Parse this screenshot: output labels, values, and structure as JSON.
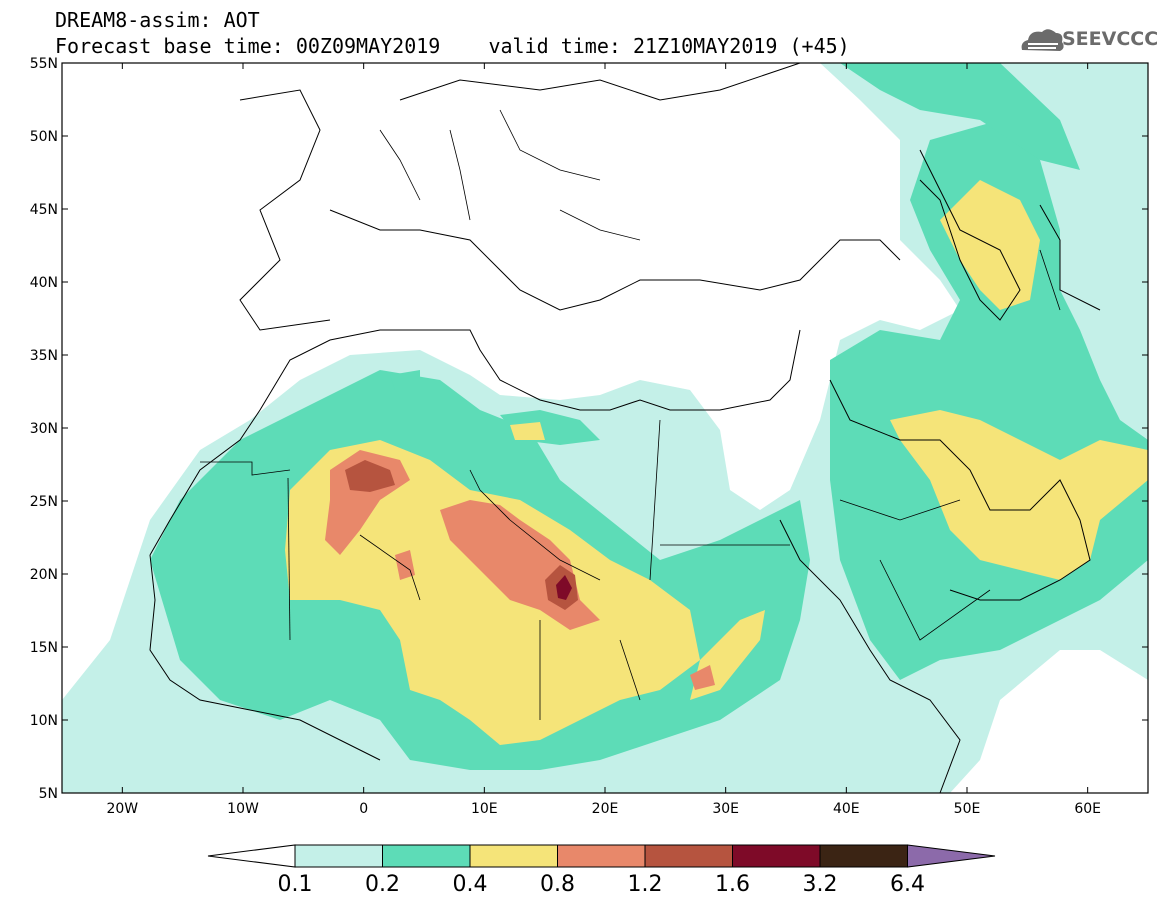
{
  "header": {
    "title_line_1": "DREAM8-assim: AOT",
    "title_line_2": "Forecast base time: 00Z09MAY2019    valid time: 21Z10MAY2019 (+45)"
  },
  "logo": {
    "text": "SEEVCCC",
    "icon": "cloud-icon"
  },
  "map": {
    "projection": "cylindrical-equidistant",
    "lon_range": [
      -25,
      65
    ],
    "lat_range": [
      5,
      55
    ],
    "lat_ticks": [
      {
        "value": 55,
        "label": "55N"
      },
      {
        "value": 50,
        "label": "50N"
      },
      {
        "value": 45,
        "label": "45N"
      },
      {
        "value": 40,
        "label": "40N"
      },
      {
        "value": 35,
        "label": "35N"
      },
      {
        "value": 30,
        "label": "30N"
      },
      {
        "value": 25,
        "label": "25N"
      },
      {
        "value": 20,
        "label": "20N"
      },
      {
        "value": 15,
        "label": "15N"
      },
      {
        "value": 10,
        "label": "10N"
      },
      {
        "value": 5,
        "label": "5N"
      }
    ],
    "lon_ticks": [
      {
        "value": -20,
        "label": "20W"
      },
      {
        "value": -10,
        "label": "10W"
      },
      {
        "value": 0,
        "label": "0"
      },
      {
        "value": 10,
        "label": "10E"
      },
      {
        "value": 20,
        "label": "20E"
      },
      {
        "value": 30,
        "label": "30E"
      },
      {
        "value": 40,
        "label": "40E"
      },
      {
        "value": 50,
        "label": "50E"
      },
      {
        "value": 60,
        "label": "60E"
      }
    ]
  },
  "colorbar": {
    "labels": [
      "0.1",
      "0.2",
      "0.4",
      "0.8",
      "1.2",
      "1.6",
      "3.2",
      "6.4"
    ],
    "colors": [
      "#ffffff",
      "#c4f0e8",
      "#5ddcb7",
      "#f5e479",
      "#e8886a",
      "#b6543f",
      "#7e0a28",
      "#3b2414",
      "#8c6aaa"
    ]
  }
}
